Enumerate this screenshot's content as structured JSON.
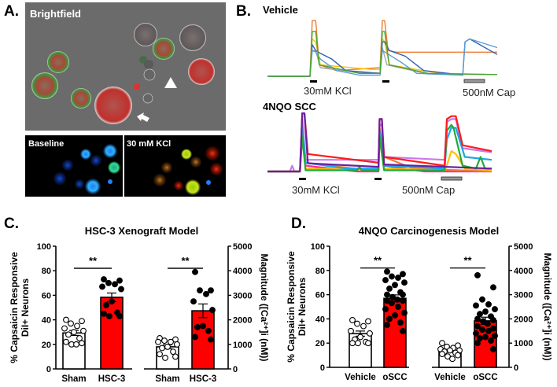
{
  "panel_labels": {
    "a": "A.",
    "b": "B.",
    "c": "C.",
    "d": "D."
  },
  "panel_a": {
    "brightfield_label": "Brightfield",
    "baseline_label": "Baseline",
    "kcl_label": "30 mM KCl"
  },
  "panel_b": {
    "vehicle_title": "Vehicle",
    "scc_title": "4NQO SCC",
    "kcl_label": "30mM KCl",
    "cap_label": "500nM Cap",
    "vehicle_traces": [
      {
        "color": "#ed7d31",
        "points": [
          [
            0,
            0
          ],
          [
            18.5,
            0
          ],
          [
            19.5,
            0.97
          ],
          [
            21,
            0.97
          ],
          [
            22.5,
            0.2
          ],
          [
            30,
            0.1
          ],
          [
            49,
            0.15
          ],
          [
            50,
            0.97
          ],
          [
            51,
            0.97
          ],
          [
            52.5,
            0.45
          ],
          [
            56,
            0.42
          ],
          [
            100,
            0.42
          ]
        ]
      },
      {
        "color": "#a5a5a5",
        "points": [
          [
            0,
            0
          ],
          [
            18.5,
            0
          ],
          [
            19.5,
            0.45
          ],
          [
            21,
            0.45
          ],
          [
            23,
            0.15
          ],
          [
            40,
            0.06
          ],
          [
            49,
            0.06
          ],
          [
            50,
            0.5
          ],
          [
            52,
            0.2
          ],
          [
            70,
            0.04
          ],
          [
            100,
            0.03
          ]
        ]
      },
      {
        "color": "#ffc000",
        "points": [
          [
            0,
            0
          ],
          [
            18.5,
            0
          ],
          [
            19.5,
            0.65
          ],
          [
            21,
            0.6
          ],
          [
            23,
            0.2
          ],
          [
            45,
            0.12
          ],
          [
            49,
            0.12
          ],
          [
            50,
            0.65
          ],
          [
            51,
            0.6
          ],
          [
            53,
            0.2
          ],
          [
            75,
            0.05
          ],
          [
            100,
            0.03
          ]
        ]
      },
      {
        "color": "#2e5fb4",
        "points": [
          [
            0,
            0
          ],
          [
            18.5,
            0
          ],
          [
            19.5,
            0.55
          ],
          [
            21,
            0.45
          ],
          [
            23,
            0.4
          ],
          [
            28,
            0.3
          ],
          [
            34,
            0.1
          ],
          [
            49,
            0.05
          ],
          [
            50,
            0.6
          ],
          [
            51,
            0.6
          ],
          [
            53,
            0.45
          ],
          [
            60,
            0.35
          ],
          [
            68,
            0.1
          ],
          [
            85,
            0.02
          ],
          [
            86,
            0.6
          ],
          [
            88,
            0.65
          ],
          [
            100,
            0.38
          ]
        ]
      },
      {
        "color": "#5b9bd5",
        "points": [
          [
            0,
            0
          ],
          [
            18.5,
            0
          ],
          [
            19.5,
            0.45
          ],
          [
            21,
            0.42
          ],
          [
            23,
            0.3
          ],
          [
            30,
            0.1
          ],
          [
            40,
            0.02
          ],
          [
            49,
            0.02
          ],
          [
            50,
            0.45
          ],
          [
            52,
            0.4
          ],
          [
            58,
            0.25
          ],
          [
            65,
            0.05
          ],
          [
            85,
            0.02
          ],
          [
            86,
            0.6
          ],
          [
            88,
            0.65
          ],
          [
            100,
            0.5
          ]
        ]
      },
      {
        "color": "#4aa532",
        "points": [
          [
            0,
            0
          ],
          [
            18.5,
            0
          ],
          [
            19.5,
            0.78
          ],
          [
            21,
            0.78
          ],
          [
            22.5,
            0.2
          ],
          [
            40,
            0.05
          ],
          [
            49,
            0.05
          ],
          [
            50,
            0.78
          ],
          [
            51,
            0.78
          ],
          [
            53,
            0.2
          ],
          [
            70,
            0.05
          ],
          [
            100,
            0.03
          ]
        ]
      }
    ],
    "scc_traces": [
      {
        "color": "#ff2aa0",
        "points": [
          [
            0,
            0
          ],
          [
            14.5,
            0
          ],
          [
            15.5,
            0.8
          ],
          [
            17,
            0.1
          ],
          [
            40,
            0
          ],
          [
            49.5,
            0
          ],
          [
            50,
            0.7
          ],
          [
            52,
            0.1
          ],
          [
            70,
            0
          ],
          [
            100,
            0
          ]
        ]
      },
      {
        "color": "#ed7d31",
        "points": [
          [
            0,
            0
          ],
          [
            14.5,
            0
          ],
          [
            15.5,
            0.85
          ],
          [
            17,
            0.15
          ],
          [
            45,
            0.02
          ],
          [
            49.5,
            0.02
          ],
          [
            50,
            0.75
          ],
          [
            52,
            0.25
          ],
          [
            65,
            0.05
          ],
          [
            100,
            0
          ]
        ]
      },
      {
        "color": "#cc77ee",
        "points": [
          [
            0,
            0
          ],
          [
            10,
            0
          ],
          [
            11,
            0.1
          ],
          [
            12,
            0
          ],
          [
            14.5,
            0
          ],
          [
            15.5,
            0.9
          ],
          [
            17,
            0.2
          ],
          [
            49.5,
            0.2
          ],
          [
            50,
            0.8
          ],
          [
            51,
            0.8
          ],
          [
            52,
            0.25
          ],
          [
            79,
            0.2
          ],
          [
            80,
            0.85
          ],
          [
            82,
            0.9
          ],
          [
            84,
            0.9
          ],
          [
            87,
            0.4
          ],
          [
            100,
            0.33
          ]
        ]
      },
      {
        "color": "#ffc000",
        "points": [
          [
            0,
            0
          ],
          [
            14.5,
            0
          ],
          [
            15.5,
            0.6
          ],
          [
            17,
            0.05
          ],
          [
            49.5,
            0.03
          ],
          [
            50,
            0.55
          ],
          [
            52,
            0.05
          ],
          [
            79,
            0.02
          ],
          [
            80,
            0.1
          ],
          [
            82,
            0.35
          ],
          [
            84,
            0.3
          ],
          [
            88,
            0.05
          ],
          [
            100,
            0.02
          ]
        ]
      },
      {
        "color": "#1aa7e8",
        "points": [
          [
            0,
            0
          ],
          [
            14.5,
            0
          ],
          [
            15.5,
            0.8
          ],
          [
            17,
            0.15
          ],
          [
            35,
            0.05
          ],
          [
            49.5,
            0.05
          ],
          [
            50,
            0.7
          ],
          [
            52,
            0.1
          ],
          [
            79,
            0.05
          ],
          [
            80,
            0.55
          ],
          [
            82,
            0.75
          ],
          [
            84,
            0.75
          ],
          [
            88,
            0.25
          ],
          [
            100,
            0.2
          ]
        ]
      },
      {
        "color": "#22a83a",
        "points": [
          [
            0,
            0
          ],
          [
            14.5,
            0
          ],
          [
            15.5,
            0.6
          ],
          [
            17,
            0.02
          ],
          [
            40,
            0.02
          ],
          [
            41,
            0.08
          ],
          [
            42,
            0.02
          ],
          [
            49.5,
            0.02
          ],
          [
            50,
            0.6
          ],
          [
            52,
            0.02
          ],
          [
            79,
            0.02
          ],
          [
            80,
            0.7
          ],
          [
            82,
            0.8
          ],
          [
            83,
            0.75
          ],
          [
            87,
            0.1
          ],
          [
            93,
            0.05
          ],
          [
            95,
            0.25
          ],
          [
            97,
            0.05
          ],
          [
            100,
            0.05
          ]
        ]
      },
      {
        "color": "#ff1a1a",
        "points": [
          [
            0,
            0
          ],
          [
            14.5,
            0
          ],
          [
            15.5,
            1
          ],
          [
            16.5,
            1
          ],
          [
            18,
            0.3
          ],
          [
            49.5,
            0.15
          ],
          [
            50,
            0.9
          ],
          [
            51,
            0.9
          ],
          [
            52,
            0.25
          ],
          [
            79,
            0.1
          ],
          [
            80,
            0.9
          ],
          [
            82,
            0.95
          ],
          [
            84,
            0.95
          ],
          [
            87,
            0.45
          ],
          [
            100,
            0.35
          ]
        ]
      },
      {
        "color": "#6a1fa0",
        "points": [
          [
            0,
            0
          ],
          [
            14.5,
            0
          ],
          [
            15.5,
            1
          ],
          [
            16.5,
            1
          ],
          [
            18,
            0.14
          ],
          [
            49.5,
            0.08
          ],
          [
            50,
            0.9
          ],
          [
            51,
            0.9
          ],
          [
            52,
            0.12
          ],
          [
            100,
            0.05
          ]
        ]
      }
    ]
  },
  "chart_data": [
    {
      "type": "bar",
      "title": "HSC-3 Xenograft Model",
      "ylabel_left": [
        "% Capsaicin Responsive",
        "DiI+ Neurons"
      ],
      "ylabel_right": "Magnitude ([Ca²⁺]i  (nM))",
      "left": {
        "ylim": [
          0,
          100
        ],
        "ticks": [
          "0",
          "20",
          "40",
          "60",
          "80",
          "100"
        ],
        "categories": [
          "Sham",
          "HSC-3"
        ],
        "significance": "**",
        "groups": [
          {
            "name": "Sham",
            "color": "#ffffff",
            "values": [
              40,
              39,
              37,
              35,
              33,
              31,
              30,
              28,
              25,
              22,
              21,
              20,
              20
            ]
          },
          {
            "name": "HSC-3",
            "color": "#ff0000",
            "values": [
              73,
              72,
              70,
              69,
              67,
              65,
              55,
              52,
              46,
              45,
              43,
              43
            ]
          }
        ]
      },
      "right": {
        "ylim": [
          0,
          5000
        ],
        "ticks": [
          "0",
          "1000",
          "2000",
          "3000",
          "4000",
          "5000"
        ],
        "categories": [
          "Sham",
          "HSC-3"
        ],
        "significance": "**",
        "groups": [
          {
            "name": "Sham",
            "color": "#ffffff",
            "values": [
              1250,
              1200,
              1150,
              1100,
              1100,
              1000,
              900,
              850,
              700,
              600,
              500,
              450
            ]
          },
          {
            "name": "HSC-3",
            "color": "#ff0000",
            "values": [
              3950,
              3200,
              3200,
              3050,
              2750,
              2400,
              1750,
              1700,
              1550,
              1300,
              1200
            ]
          }
        ]
      }
    },
    {
      "type": "bar",
      "title": "4NQO Carcinogenesis Model",
      "ylabel_left": [
        "% Capsaicin Responsive",
        "DiI+ Neurons"
      ],
      "ylabel_right": "Magnitude ([Ca²⁺]i  (nM))",
      "left": {
        "ylim": [
          0,
          100
        ],
        "ticks": [
          "0",
          "20",
          "40",
          "60",
          "80",
          "100"
        ],
        "categories": [
          "Vehicle",
          "oSCC"
        ],
        "significance": "**",
        "groups": [
          {
            "name": "Vehicle",
            "color": "#ffffff",
            "values": [
              39,
              38,
              36,
              34,
              30,
              28,
              25,
              23,
              21,
              20,
              20,
              20
            ]
          },
          {
            "name": "oSCC",
            "color": "#ff0000",
            "values": [
              79,
              77,
              75,
              74,
              72,
              70,
              68,
              65,
              62,
              60,
              60,
              58,
              56,
              55,
              55,
              53,
              50,
              48,
              45,
              43,
              40,
              37,
              35,
              30
            ]
          }
        ]
      },
      "right": {
        "ylim": [
          0,
          5000
        ],
        "ticks": [
          "0",
          "1000",
          "2000",
          "3000",
          "4000",
          "5000"
        ],
        "categories": [
          "Vehicle",
          "oSCC"
        ],
        "significance": "**",
        "groups": [
          {
            "name": "Vehicle",
            "color": "#ffffff",
            "values": [
              1000,
              900,
              850,
              800,
              750,
              700,
              700,
              650,
              600,
              550,
              500,
              450,
              350
            ]
          },
          {
            "name": "oSCC",
            "color": "#ff0000",
            "values": [
              3800,
              3300,
              2800,
              2600,
              2550,
              2400,
              2300,
              2200,
              2100,
              2000,
              1950,
              1900,
              1800,
              1700,
              1600,
              1550,
              1500,
              1400,
              1300,
              1250,
              1200,
              1100,
              1000,
              750
            ]
          }
        ]
      }
    }
  ]
}
